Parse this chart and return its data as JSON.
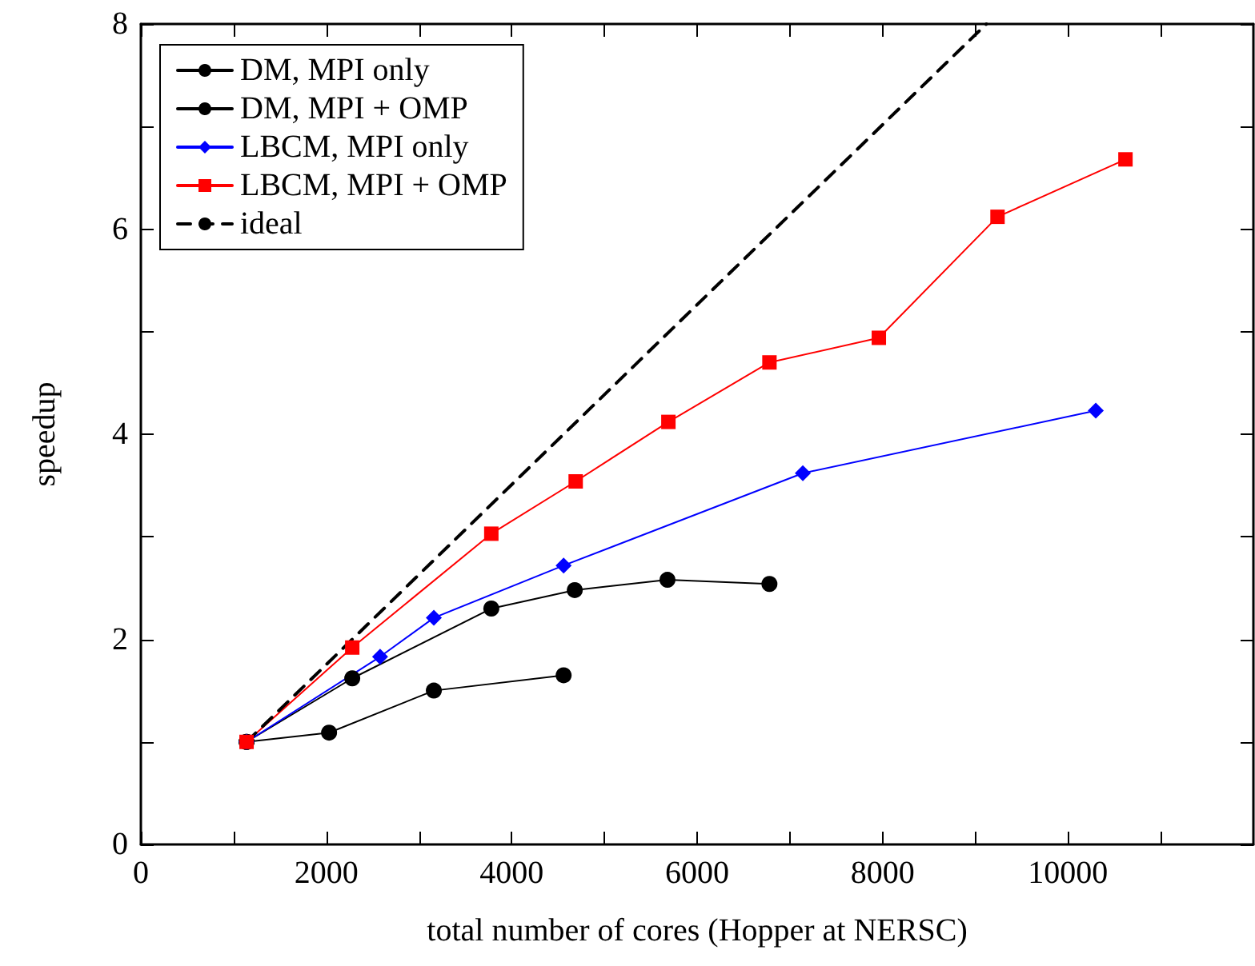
{
  "chart_data": {
    "type": "line",
    "xlabel": "total number of cores (Hopper at NERSC)",
    "ylabel": "speedup",
    "xlim": [
      0,
      12000
    ],
    "ylim": [
      0,
      8
    ],
    "xticks": [
      0,
      {
        "value": 1000,
        "label": null
      },
      2000,
      {
        "value": 3000,
        "label": null
      },
      4000,
      {
        "value": 5000,
        "label": null
      },
      6000,
      {
        "value": 7000,
        "label": null
      },
      8000,
      {
        "value": 9000,
        "label": null
      },
      10000,
      {
        "value": 11000,
        "label": null
      }
    ],
    "yticks": [
      0,
      {
        "value": 1,
        "label": null
      },
      2,
      {
        "value": 3,
        "label": null
      },
      4,
      {
        "value": 5,
        "label": null
      },
      6,
      {
        "value": 7,
        "label": null
      },
      8
    ],
    "grid": false,
    "legend": "top left",
    "line_style": "solid",
    "series": [
      {
        "name": "DM, MPI only",
        "color": "#000000",
        "marker": "circle",
        "x": [
          1140,
          2030,
          3160,
          4560
        ],
        "values": [
          1.0,
          1.09,
          1.5,
          1.65
        ]
      },
      {
        "name": "DM, MPI + OMP",
        "color": "#000000",
        "marker": "circle",
        "x": [
          1140,
          2280,
          3780,
          4680,
          5680,
          6780
        ],
        "values": [
          1.0,
          1.62,
          2.3,
          2.48,
          2.58,
          2.54
        ]
      },
      {
        "name": "LBCM, MPI only",
        "color": "#0000ff",
        "marker": "diamond",
        "x": [
          1140,
          2580,
          3160,
          4560,
          7140,
          10300
        ],
        "values": [
          1.0,
          1.83,
          2.21,
          2.72,
          3.62,
          4.23
        ]
      },
      {
        "name": "LBCM, MPI + OMP",
        "color": "#ff0000",
        "marker": "square",
        "x": [
          1140,
          2280,
          3780,
          4690,
          5690,
          6780,
          7960,
          9240,
          10620
        ],
        "values": [
          1.0,
          1.92,
          3.03,
          3.54,
          4.12,
          4.7,
          4.94,
          6.12,
          6.68
        ]
      },
      {
        "name": "ideal",
        "color": "#000000",
        "marker": "none",
        "line_style": "dashed",
        "x": [
          1140,
          9120
        ],
        "values": [
          1,
          8
        ]
      }
    ]
  }
}
